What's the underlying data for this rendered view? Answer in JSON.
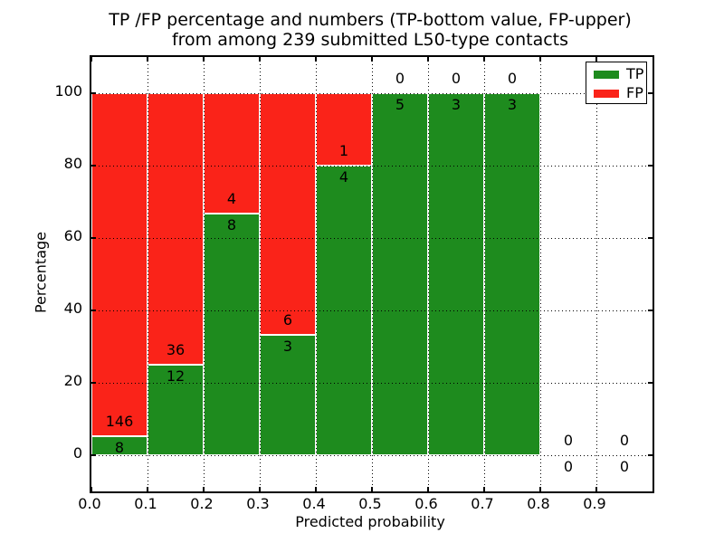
{
  "title": {
    "line1": "TP /FP percentage and numbers (TP-bottom value, FP-upper)",
    "line2": "from among 239 submitted L50-type contacts"
  },
  "legend": {
    "items": [
      {
        "name": "TP",
        "color": "#1e8b1e"
      },
      {
        "name": "FP",
        "color": "#fa2319"
      }
    ]
  },
  "chart_data": {
    "type": "bar",
    "stacked": true,
    "title": "TP /FP percentage and numbers (TP-bottom value, FP-upper) from among 239 submitted L50-type contacts",
    "xlabel": "Predicted probability",
    "ylabel": "Percentage",
    "xlim": [
      0.0,
      1.0
    ],
    "ylim": [
      -10,
      110
    ],
    "xticks": [
      "0.0",
      "0.1",
      "0.2",
      "0.3",
      "0.4",
      "0.5",
      "0.6",
      "0.7",
      "0.8",
      "0.9"
    ],
    "yticks": [
      "0",
      "20",
      "40",
      "60",
      "80",
      "100"
    ],
    "grid": true,
    "grid_style": "dotted",
    "legend_position": "upper right",
    "total_contacts": 239,
    "series": [
      {
        "name": "TP",
        "color": "#1e8b1e",
        "values": [
          8,
          12,
          8,
          3,
          4,
          5,
          3,
          3,
          0,
          0
        ]
      },
      {
        "name": "FP",
        "color": "#fa2319",
        "values": [
          146,
          36,
          4,
          6,
          1,
          0,
          0,
          0,
          0,
          0
        ]
      }
    ],
    "bins": [
      {
        "x0": 0.0,
        "x1": 0.1,
        "tp": 8,
        "fp": 146,
        "tp_pct": 5.19
      },
      {
        "x0": 0.1,
        "x1": 0.2,
        "tp": 12,
        "fp": 36,
        "tp_pct": 25.0
      },
      {
        "x0": 0.2,
        "x1": 0.3,
        "tp": 8,
        "fp": 4,
        "tp_pct": 66.67
      },
      {
        "x0": 0.3,
        "x1": 0.4,
        "tp": 3,
        "fp": 6,
        "tp_pct": 33.33
      },
      {
        "x0": 0.4,
        "x1": 0.5,
        "tp": 4,
        "fp": 1,
        "tp_pct": 80.0
      },
      {
        "x0": 0.5,
        "x1": 0.6,
        "tp": 5,
        "fp": 0,
        "tp_pct": 100.0
      },
      {
        "x0": 0.6,
        "x1": 0.7,
        "tp": 3,
        "fp": 0,
        "tp_pct": 100.0
      },
      {
        "x0": 0.7,
        "x1": 0.8,
        "tp": 3,
        "fp": 0,
        "tp_pct": 100.0
      },
      {
        "x0": 0.8,
        "x1": 0.9,
        "tp": 0,
        "fp": 0,
        "tp_pct": null
      },
      {
        "x0": 0.9,
        "x1": 1.0,
        "tp": 0,
        "fp": 0,
        "tp_pct": null
      }
    ]
  }
}
